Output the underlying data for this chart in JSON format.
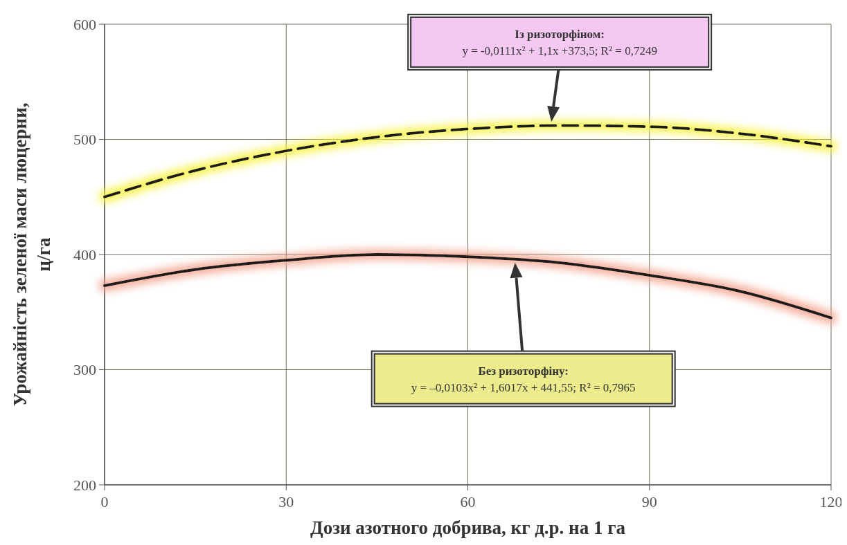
{
  "chart_data": {
    "type": "line",
    "xlabel": "Дози азотного добрива, кг д.р. на 1 га",
    "ylabel": "Урожайність зеленої маси люцерни,\nц/га",
    "xlim": [
      0,
      120
    ],
    "xticks": [
      0,
      30,
      60,
      90,
      120
    ],
    "ylim": [
      200,
      600
    ],
    "yticks": [
      200,
      300,
      400,
      500,
      600
    ],
    "grid": true,
    "series": [
      {
        "color": "#1a1a1a",
        "line_style": "dashed",
        "x": [
          0,
          15,
          30,
          45,
          60,
          75,
          90,
          105,
          120
        ],
        "values": [
          450,
          473,
          490,
          502,
          509,
          512,
          511,
          505,
          494
        ]
      },
      {
        "color": "#1a1a1a",
        "line_style": "solid",
        "x": [
          0,
          15,
          30,
          45,
          60,
          75,
          90,
          105,
          120
        ],
        "values": [
          373,
          387,
          395,
          400,
          398,
          393,
          382,
          368,
          345
        ]
      }
    ],
    "annotations": [
      "Із ризоторфіном:\ny = -0,0111x² + 1,1x +373,5; R² = 0,7249",
      "Без ризоторфіну:\ny = –0,0103x² + 1,6017x + 441,55; R² = 0,7965"
    ]
  }
}
